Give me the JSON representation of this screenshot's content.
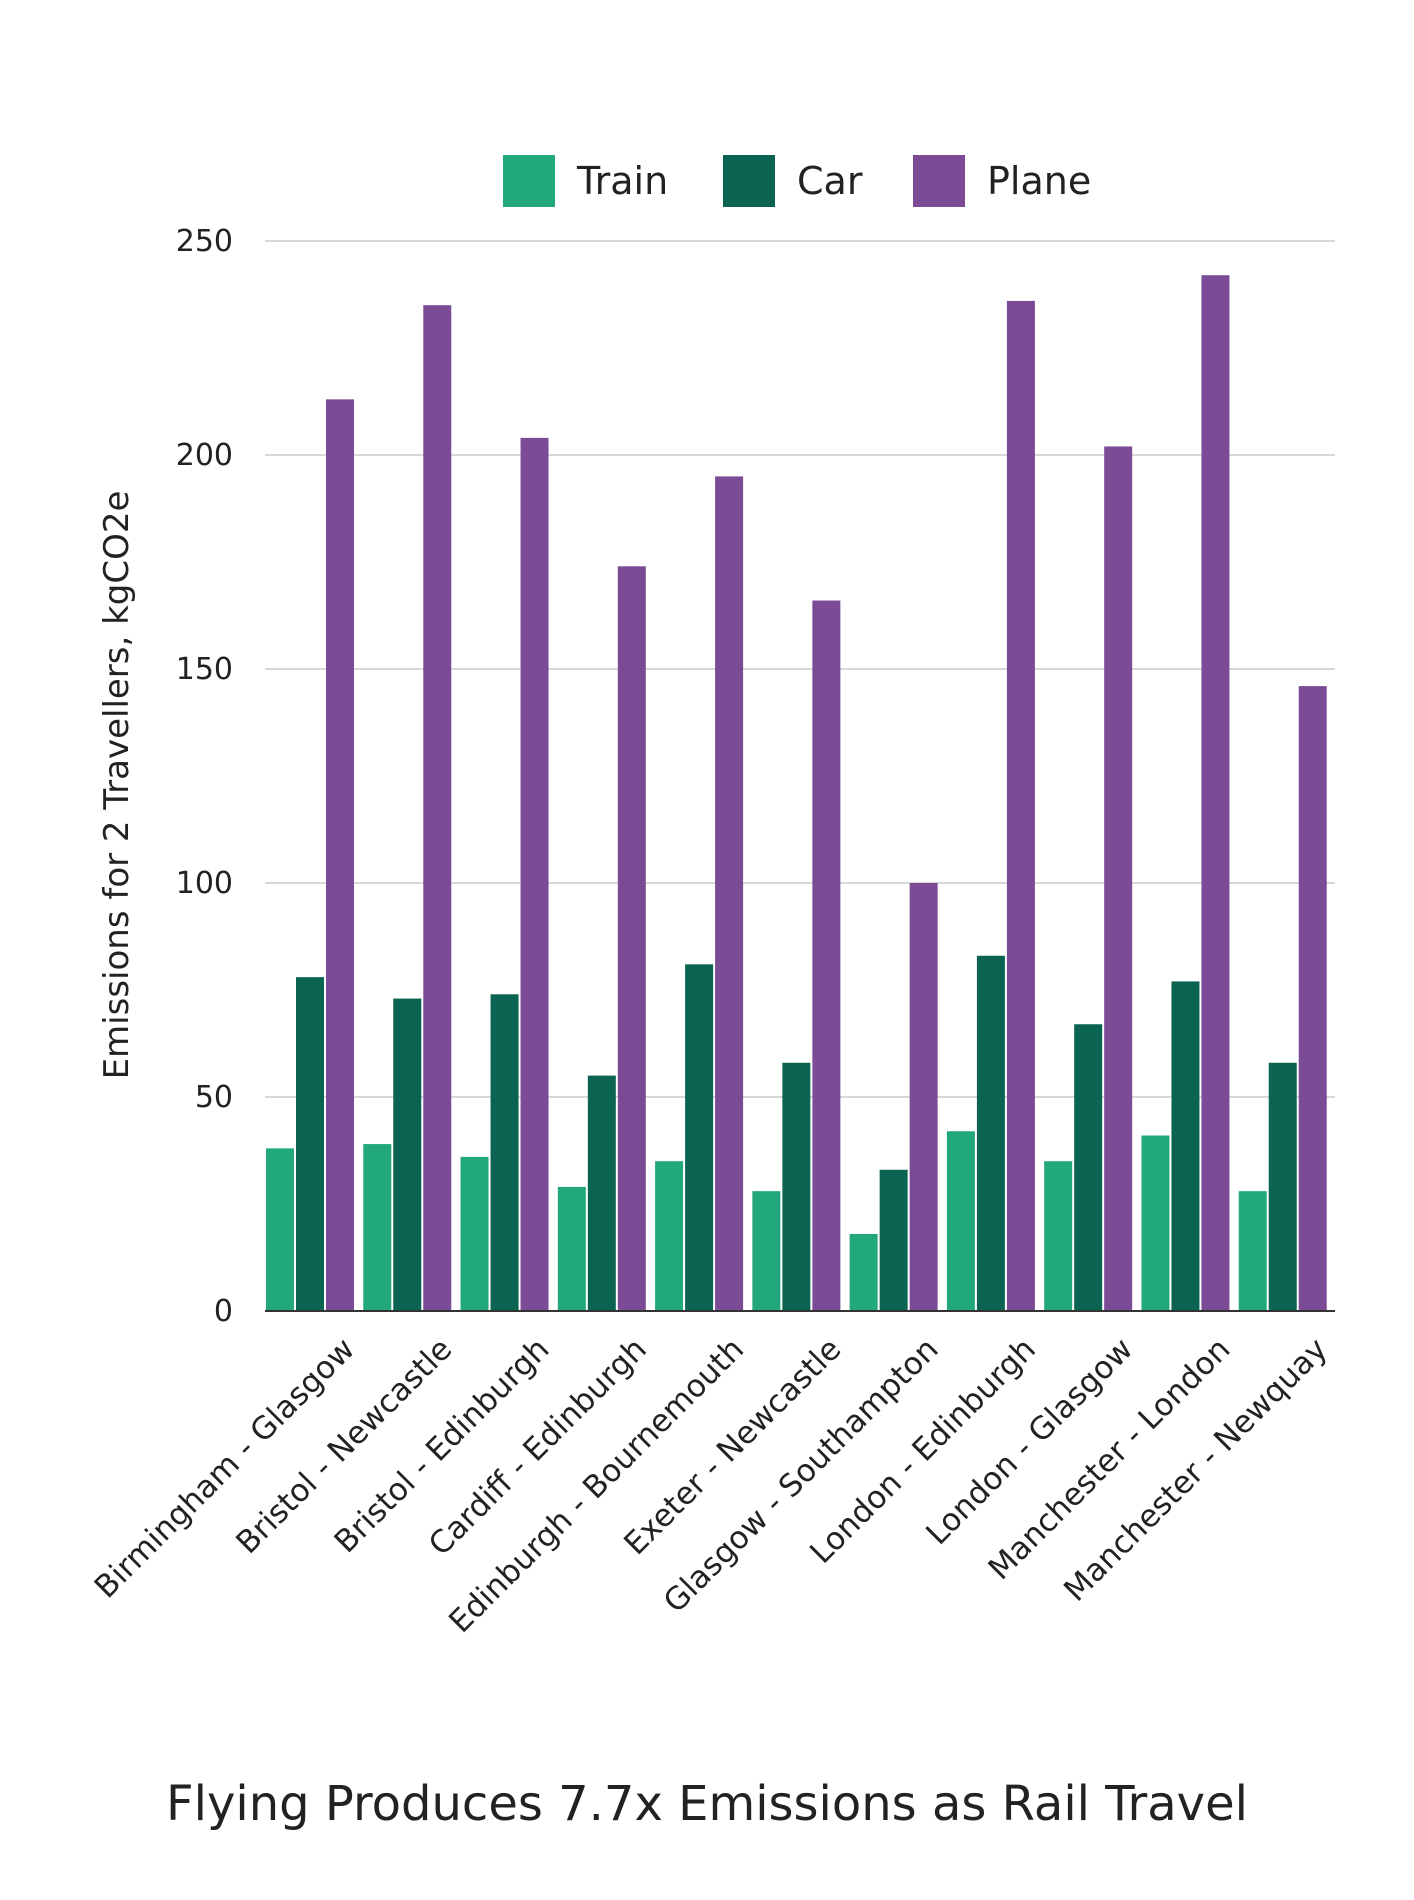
{
  "chart_data": {
    "type": "bar",
    "title": "Flying Produces 7.7x Emissions as Rail Travel",
    "xlabel": "",
    "ylabel": "Emissions for 2 Travellers, kgCO2e",
    "ylim": [
      0,
      250
    ],
    "yticks": [
      0,
      50,
      100,
      150,
      200,
      250
    ],
    "grid": true,
    "legend_position": "top-center",
    "categories": [
      "Birmingham - Glasgow",
      "Bristol - Newcastle",
      "Bristol - Edinburgh",
      "Cardiff - Edinburgh",
      "Edinburgh - Bournemouth",
      "Exeter - Newcastle",
      "Glasgow - Southampton",
      "London - Edinburgh",
      "London - Glasgow",
      "Manchester - London",
      "Manchester - Newquay"
    ],
    "series": [
      {
        "name": "Train",
        "color": "#21a87c",
        "values": [
          38,
          39,
          36,
          29,
          35,
          28,
          18,
          42,
          35,
          41,
          28
        ]
      },
      {
        "name": "Car",
        "color": "#0b6452",
        "values": [
          78,
          73,
          74,
          55,
          81,
          58,
          33,
          83,
          67,
          77,
          58
        ]
      },
      {
        "name": "Plane",
        "color": "#7b4b96",
        "values": [
          213,
          235,
          204,
          174,
          195,
          166,
          100,
          236,
          202,
          242,
          146
        ]
      }
    ]
  }
}
